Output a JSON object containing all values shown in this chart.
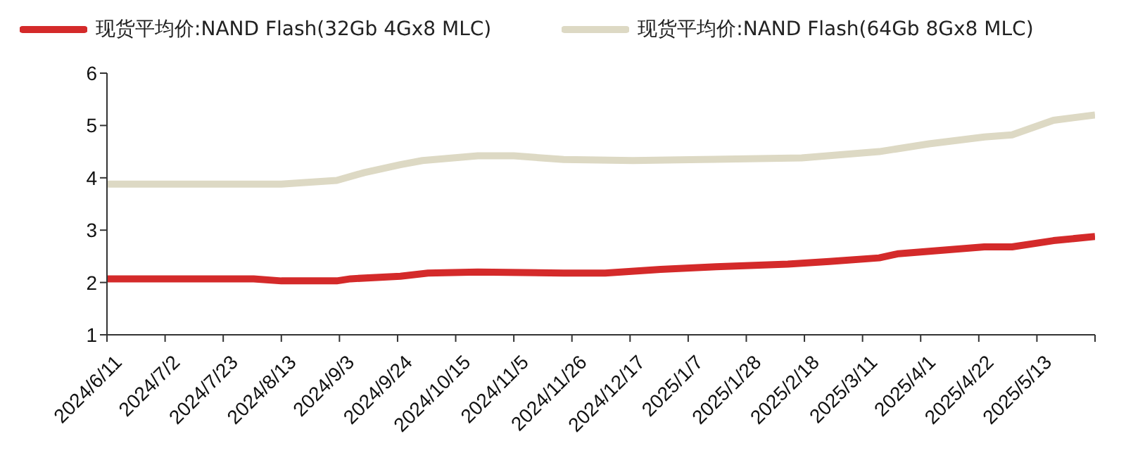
{
  "chart_data": {
    "type": "line",
    "series": [
      {
        "name": "现货平均价:NAND Flash(32Gb 4Gx8 MLC)",
        "color": "#d42a2a",
        "x": [
          "2024-06-11",
          "2024-08-03",
          "2024-08-13",
          "2024-09-02",
          "2024-09-07",
          "2024-09-25",
          "2024-10-05",
          "2024-10-23",
          "2024-11-23",
          "2024-12-08",
          "2024-12-28",
          "2025-01-17",
          "2025-02-12",
          "2025-02-27",
          "2025-03-17",
          "2025-03-24",
          "2025-04-24",
          "2025-05-04",
          "2025-05-19",
          "2025-06-03"
        ],
        "values": [
          2.07,
          2.07,
          2.03,
          2.03,
          2.07,
          2.12,
          2.18,
          2.2,
          2.18,
          2.18,
          2.25,
          2.3,
          2.35,
          2.4,
          2.47,
          2.55,
          2.68,
          2.68,
          2.8,
          2.88
        ]
      },
      {
        "name": "现货平均价:NAND Flash(64Gb 8Gx8 MLC)",
        "color": "#ddd9c4",
        "x": [
          "2024-06-11",
          "2024-08-13",
          "2024-09-02",
          "2024-09-12",
          "2024-09-25",
          "2024-10-03",
          "2024-10-23",
          "2024-11-05",
          "2024-11-23",
          "2024-12-18",
          "2025-01-12",
          "2025-02-17",
          "2025-03-17",
          "2025-04-04",
          "2025-04-24",
          "2025-05-04",
          "2025-05-19",
          "2025-06-03"
        ],
        "values": [
          3.88,
          3.88,
          3.95,
          4.1,
          4.25,
          4.33,
          4.42,
          4.42,
          4.35,
          4.33,
          4.35,
          4.38,
          4.5,
          4.65,
          4.78,
          4.82,
          5.1,
          5.2
        ]
      }
    ],
    "xlim": [
      "2024-06-11",
      "2025-06-03"
    ],
    "xticks": [
      {
        "value": "2024-06-11",
        "label": "2024/6/11"
      },
      {
        "value": "2024-07-02",
        "label": "2024/7/2"
      },
      {
        "value": "2024-07-23",
        "label": "2024/7/23"
      },
      {
        "value": "2024-08-13",
        "label": "2024/8/13"
      },
      {
        "value": "2024-09-03",
        "label": "2024/9/3"
      },
      {
        "value": "2024-09-24",
        "label": "2024/9/24"
      },
      {
        "value": "2024-10-15",
        "label": "2024/10/15"
      },
      {
        "value": "2024-11-05",
        "label": "2024/11/5"
      },
      {
        "value": "2024-11-26",
        "label": "2024/11/26"
      },
      {
        "value": "2024-12-17",
        "label": "2024/12/17"
      },
      {
        "value": "2025-01-07",
        "label": "2025/1/7"
      },
      {
        "value": "2025-01-28",
        "label": "2025/1/28"
      },
      {
        "value": "2025-02-18",
        "label": "2025/2/18"
      },
      {
        "value": "2025-03-11",
        "label": "2025/3/11"
      },
      {
        "value": "2025-04-01",
        "label": "2025/4/1"
      },
      {
        "value": "2025-04-22",
        "label": "2025/4/22"
      },
      {
        "value": "2025-05-13",
        "label": "2025/5/13"
      },
      {
        "value": "2025-06-03",
        "label": null
      }
    ],
    "ylim": [
      1,
      6
    ],
    "yticks": [
      1,
      2,
      3,
      4,
      5,
      6
    ],
    "grid": false,
    "legend": "top left",
    "marker": "none",
    "line_style": "solid"
  }
}
